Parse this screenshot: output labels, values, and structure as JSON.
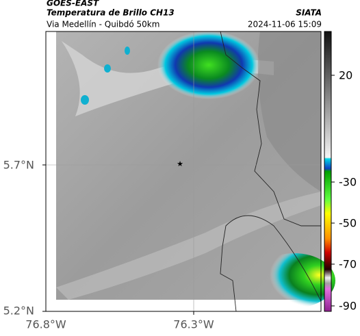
{
  "header": {
    "source": "GOES-EAST",
    "title": "Temperatura de Brillo CH13",
    "brand": "SIATA",
    "route": "Via Medellín - Quibdó 50km",
    "timestamp": "2024-11-06 15:09"
  },
  "map": {
    "lat_labels": [
      "5.7°N",
      "5.2°N"
    ],
    "lon_labels": [
      "76.8°W",
      "76.3°W"
    ]
  },
  "colorbar": {
    "labels": [
      "20",
      "-30",
      "-50",
      "-70",
      "-90"
    ]
  }
}
